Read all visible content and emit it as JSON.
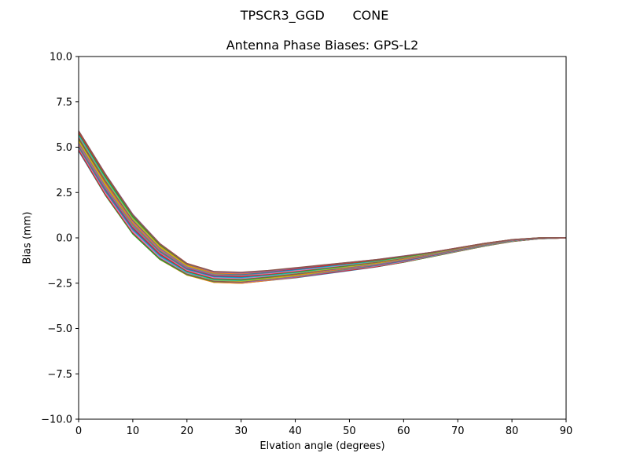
{
  "figure": {
    "suptitle": "TPSCR3_GGD       CONE",
    "title": "Antenna Phase Biases: GPS-L2",
    "xlabel": "Elvation angle (degrees)",
    "ylabel": "Bias (mm)"
  },
  "chart_data": {
    "type": "line",
    "title": "Antenna Phase Biases: GPS-L2",
    "suptitle": "TPSCR3_GGD       CONE",
    "xlabel": "Elvation angle (degrees)",
    "ylabel": "Bias (mm)",
    "xlim": [
      0,
      90
    ],
    "ylim": [
      -10,
      10
    ],
    "xticks": [
      0,
      10,
      20,
      30,
      40,
      50,
      60,
      70,
      80,
      90
    ],
    "yticks": [
      -10.0,
      -7.5,
      -5.0,
      -2.5,
      0.0,
      2.5,
      5.0,
      7.5,
      10.0
    ],
    "ytick_labels": [
      "−10.0",
      "−7.5",
      "−5.0",
      "−2.5",
      "0.0",
      "2.5",
      "5.0",
      "7.5",
      "10.0"
    ],
    "grid": false,
    "legend": null,
    "x": [
      0,
      5,
      10,
      15,
      20,
      25,
      30,
      35,
      40,
      45,
      50,
      55,
      60,
      65,
      70,
      75,
      80,
      85,
      90
    ],
    "envelope_upper": [
      5.9,
      3.5,
      1.3,
      -0.3,
      -1.4,
      -1.85,
      -1.9,
      -1.8,
      -1.65,
      -1.5,
      -1.35,
      -1.2,
      -1.0,
      -0.8,
      -0.55,
      -0.3,
      -0.1,
      0.0,
      0.0
    ],
    "envelope_lower": [
      4.8,
      2.3,
      0.2,
      -1.2,
      -2.05,
      -2.45,
      -2.5,
      -2.35,
      -2.2,
      -2.0,
      -1.8,
      -1.6,
      -1.35,
      -1.05,
      -0.75,
      -0.45,
      -0.2,
      -0.05,
      0.0
    ],
    "series_count": 36,
    "colors": [
      "#1f77b4",
      "#ff7f0e",
      "#2ca02c",
      "#d62728",
      "#9467bd",
      "#8c564b",
      "#e377c2",
      "#7f7f7f",
      "#bcbd22",
      "#17becf"
    ],
    "note": "Dense bundle of per-azimuth curves; individual series lie between the upper and lower envelopes."
  }
}
